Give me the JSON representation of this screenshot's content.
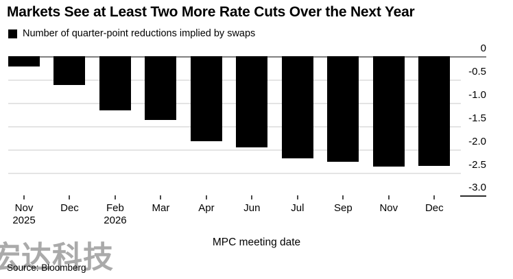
{
  "header": {
    "title": "Markets See at Least Two More Rate Cuts Over the Next Year",
    "legend_label": "Number of quarter-point reductions implied by swaps"
  },
  "chart_data": {
    "type": "bar",
    "title": "Markets See at Least Two More Rate Cuts Over the Next Year",
    "legend": "Number of quarter-point reductions implied by swaps",
    "categories": [
      [
        "Nov",
        "2025"
      ],
      [
        "Dec"
      ],
      [
        "Feb",
        "2026"
      ],
      [
        "Mar"
      ],
      [
        "Apr"
      ],
      [
        "Jun"
      ],
      [
        "Jul"
      ],
      [
        "Sep"
      ],
      [
        "Nov"
      ],
      [
        "Dec"
      ]
    ],
    "values": [
      -0.2,
      -0.6,
      -1.15,
      -1.36,
      -1.81,
      -1.94,
      -2.19,
      -2.26,
      -2.36,
      -2.35
    ],
    "xlabel": "MPC meeting date",
    "ylabel": "",
    "ylim": [
      -3.0,
      0
    ],
    "yticks": [
      0,
      -0.5,
      -1.0,
      -1.5,
      -2.0,
      -2.5,
      -3.0
    ],
    "ytick_labels": [
      "0",
      "-0.5",
      "-1.0",
      "-1.5",
      "-2.0",
      "-2.5",
      "-3.0"
    ],
    "bar_color": "#000000",
    "grid": true,
    "value_axis_side": "right",
    "legend_position": "top-left"
  },
  "footer": {
    "source": "Source: Bloomberg",
    "watermark": "宏达科技"
  }
}
